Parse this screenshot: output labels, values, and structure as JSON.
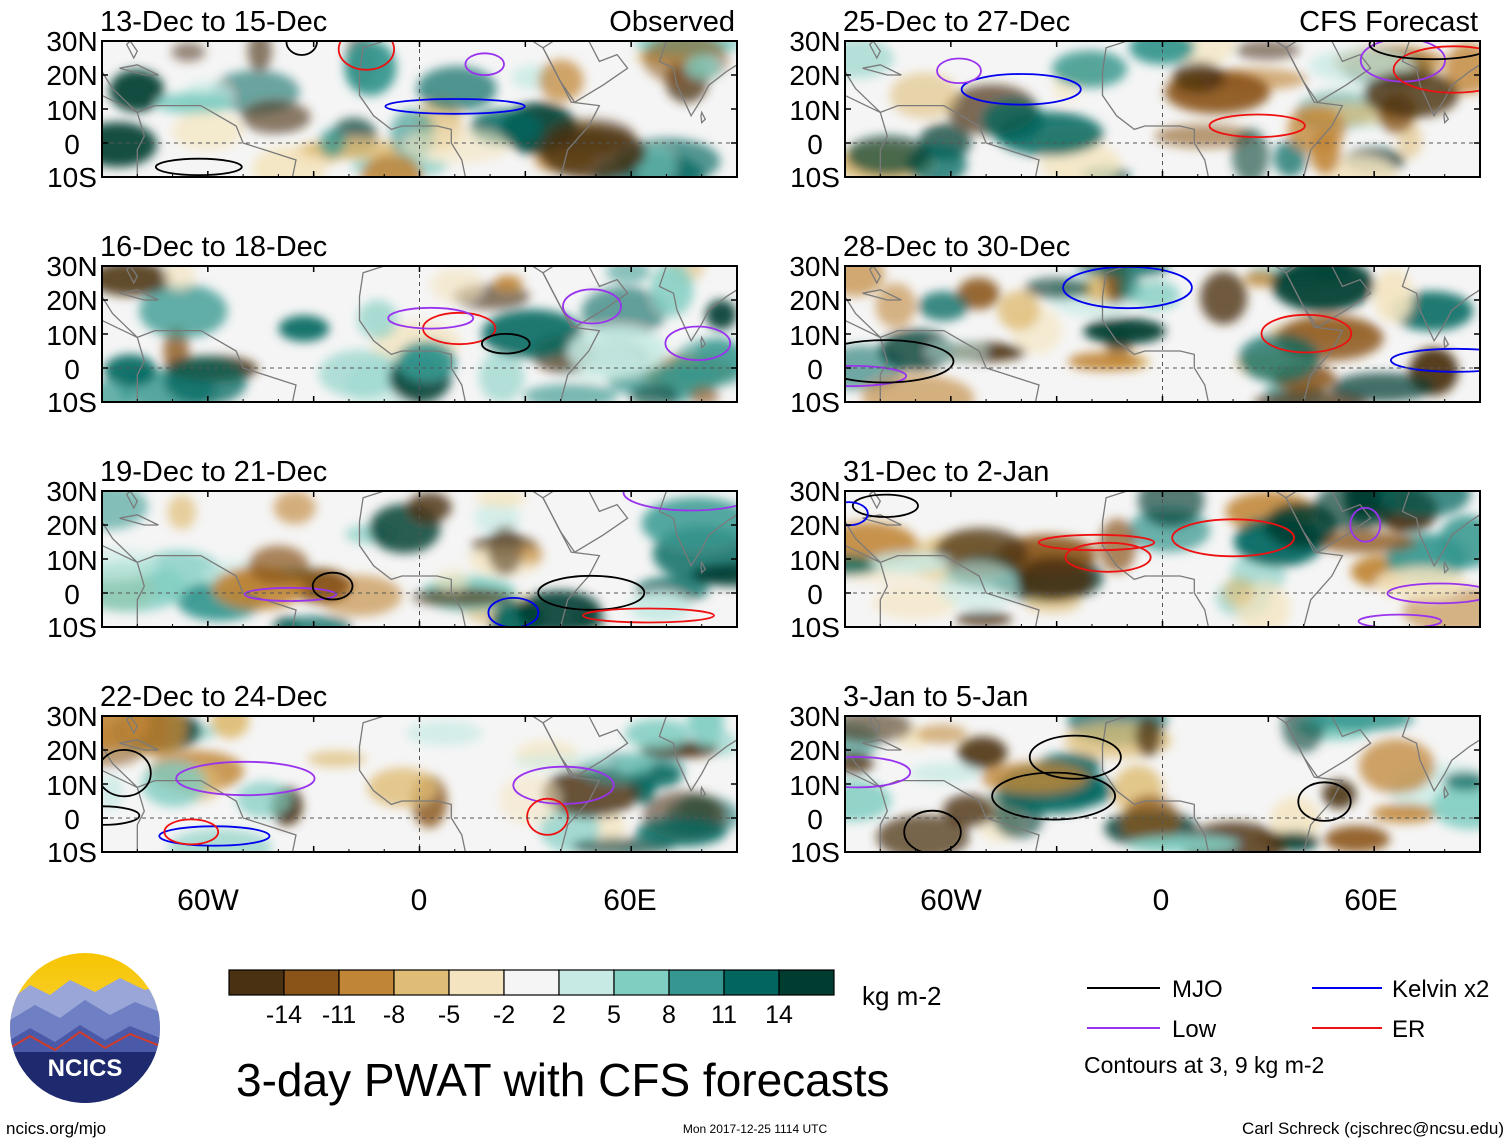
{
  "figure": {
    "title": "3-day PWAT with CFS forecasts",
    "logo_text": "NCICS",
    "footer_left": "ncics.org/mjo",
    "footer_center": "Mon 2017-12-25 1114 UTC",
    "footer_right": "Carl Schreck (cjschrec@ncsu.edu)",
    "units": "kg m-2",
    "contours_note": "Contours at 3, 9 kg m-2"
  },
  "axes": {
    "lat_ticks": [
      "30N",
      "20N",
      "10N",
      "0",
      "10S"
    ],
    "lon_ticks": [
      "60W",
      "0",
      "60E"
    ]
  },
  "columns": [
    {
      "label": "Observed",
      "panels": [
        "13-Dec to 15-Dec",
        "16-Dec to 18-Dec",
        "19-Dec to 21-Dec",
        "22-Dec to 24-Dec"
      ]
    },
    {
      "label": "CFS Forecast",
      "panels": [
        "25-Dec to 27-Dec",
        "28-Dec to 30-Dec",
        "31-Dec to 2-Jan",
        "3-Jan to 5-Jan"
      ]
    }
  ],
  "colorbar": {
    "colors": [
      "#4a3111",
      "#8a5418",
      "#c08535",
      "#dfbd76",
      "#f4e5c0",
      "#f5f5f5",
      "#c7eae4",
      "#80cdc1",
      "#35978f",
      "#01665e",
      "#003c30"
    ],
    "labels": [
      "-14",
      "-11",
      "-8",
      "-5",
      "-2",
      "2",
      "5",
      "8",
      "11",
      "14"
    ]
  },
  "legend": [
    {
      "label": "MJO",
      "color": "#000000"
    },
    {
      "label": "Kelvin x2",
      "color": "#0000ee"
    },
    {
      "label": "Low",
      "color": "#9933ee"
    },
    {
      "label": "ER",
      "color": "#ee1111"
    }
  ],
  "chart_data": {
    "type": "heatmap",
    "title": "3-day PWAT with CFS forecasts",
    "variable": "precipitable water anomaly",
    "units": "kg m-2",
    "lon_range": [
      -90,
      90
    ],
    "lat_range": [
      -10,
      30
    ],
    "contour_levels": [
      3,
      9
    ],
    "color_levels": [
      -14,
      -11,
      -8,
      -5,
      -2,
      2,
      5,
      8,
      11,
      14
    ],
    "observed_periods": [
      "13-Dec to 15-Dec",
      "16-Dec to 18-Dec",
      "19-Dec to 21-Dec",
      "22-Dec to 24-Dec"
    ],
    "forecast_periods": [
      "25-Dec to 27-Dec",
      "28-Dec to 30-Dec",
      "31-Dec to 2-Jan",
      "3-Jan to 5-Jan"
    ],
    "contour_types": [
      "MJO",
      "Kelvin x2",
      "Low",
      "ER"
    ]
  }
}
